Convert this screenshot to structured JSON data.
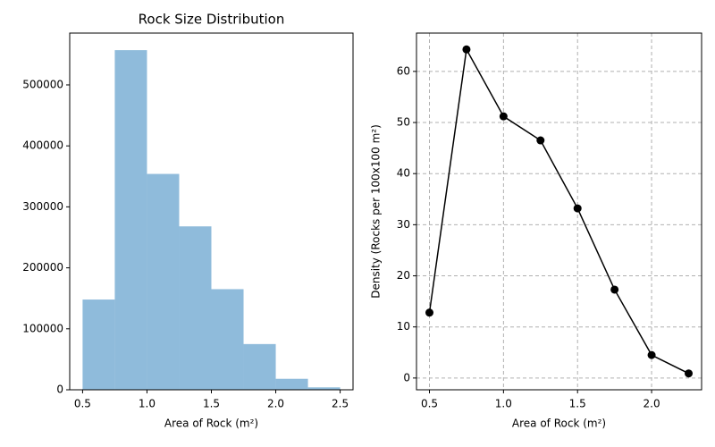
{
  "chart_data": [
    {
      "type": "histogram",
      "title": "Rock Size Distribution",
      "xlabel": "Area of Rock (m²)",
      "bins": [
        0.5,
        0.75,
        1.0,
        1.25,
        1.5,
        1.75,
        2.0,
        2.25,
        2.5
      ],
      "values": [
        148000,
        557000,
        354000,
        268000,
        165000,
        75000,
        18000,
        4000
      ],
      "color": "#8fbbdb",
      "xlim": [
        0.4,
        2.6
      ],
      "xticks": [
        0.5,
        {
          "value": 1.0,
          "label": "1.0"
        },
        1.5,
        {
          "value": 2.0,
          "label": "2.0"
        },
        2.5
      ],
      "ylim": [
        0,
        585000
      ],
      "yticks": [
        0,
        100000,
        200000,
        300000,
        400000,
        500000
      ],
      "grid": false
    },
    {
      "type": "line",
      "xlabel": "Area of Rock (m²)",
      "ylabel": "Density (Rocks per 100x100 m²)",
      "x": [
        0.5,
        0.75,
        1.0,
        1.25,
        1.5,
        1.75,
        2.0,
        2.25
      ],
      "values": [
        12.8,
        64.3,
        51.2,
        46.5,
        33.2,
        17.3,
        4.5,
        0.9
      ],
      "color": "#000000",
      "xlim": [
        0.4125,
        2.3375
      ],
      "xticks": [
        0.5,
        {
          "value": 1.0,
          "label": "1.0"
        },
        1.5,
        {
          "value": 2.0,
          "label": "2.0"
        }
      ],
      "ylim": [
        -2.3,
        67.5
      ],
      "yticks": [
        0,
        10,
        20,
        30,
        40,
        50,
        60
      ],
      "grid": true
    }
  ]
}
